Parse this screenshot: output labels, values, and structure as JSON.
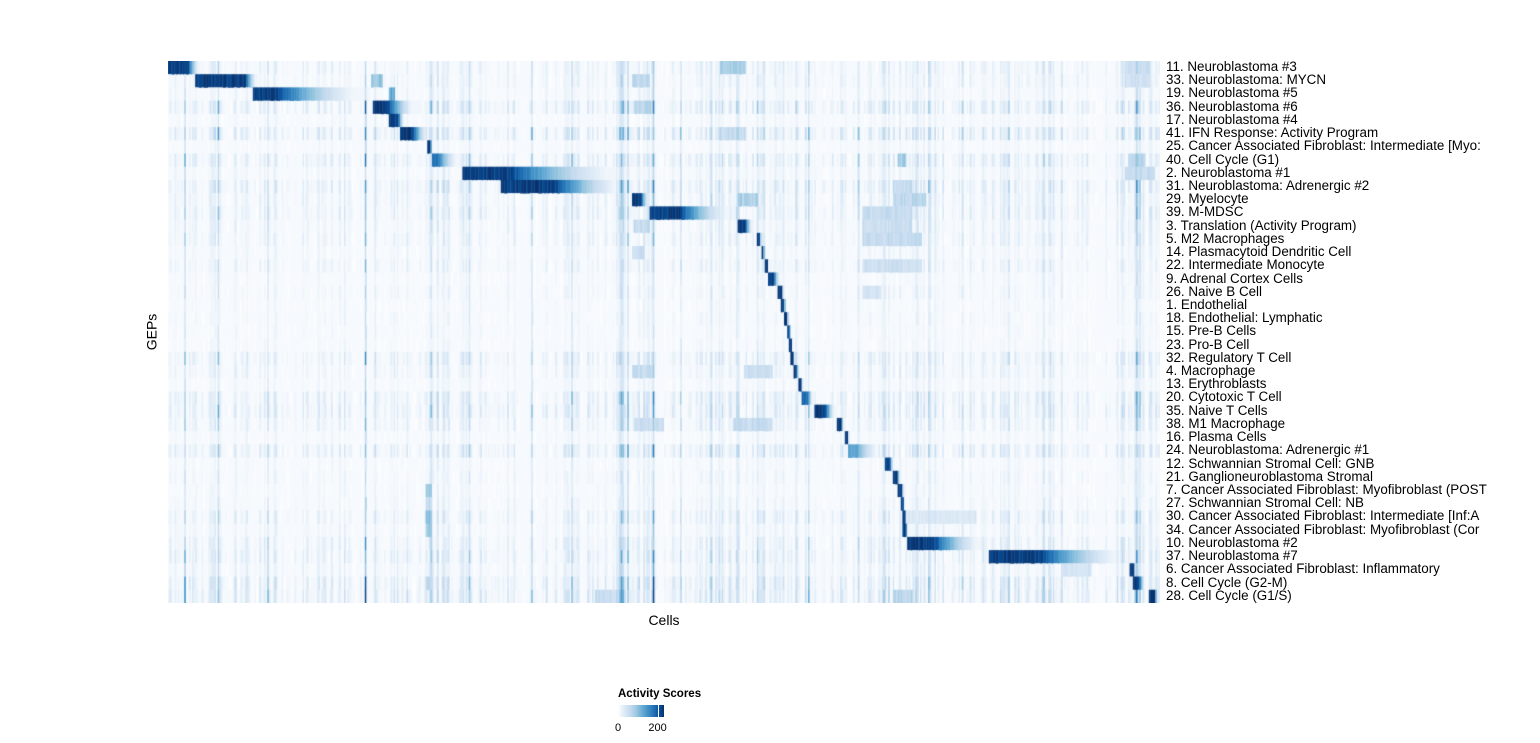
{
  "chart_data": {
    "type": "heatmap",
    "xlabel": "Cells",
    "ylabel": "GEPs",
    "legend": {
      "title": "Activity Scores",
      "min_label": "0",
      "tick_label": "200",
      "tick_pos": 0.86,
      "position": "bottom-left"
    },
    "colors": {
      "background": "#ffffff",
      "panel": "#f6fafe",
      "max": "#08306b",
      "scale": [
        {
          "t": 0.0,
          "c": "#ffffff"
        },
        {
          "t": 0.13,
          "c": "#deebf7"
        },
        {
          "t": 0.26,
          "c": "#c6dbef"
        },
        {
          "t": 0.39,
          "c": "#9ecae1"
        },
        {
          "t": 0.52,
          "c": "#6baed6"
        },
        {
          "t": 0.65,
          "c": "#4292c6"
        },
        {
          "t": 0.78,
          "c": "#2171b5"
        },
        {
          "t": 0.9,
          "c": "#08519c"
        },
        {
          "t": 1.0,
          "c": "#08306b"
        }
      ]
    },
    "n_rows": 41,
    "noise_columns": {
      "seed": 42,
      "hot_bands": [
        [
          0.19,
          0.215,
          1.5
        ],
        [
          0.26,
          0.285,
          1.35
        ],
        [
          0.44,
          0.5,
          1.4
        ],
        [
          0.555,
          0.585,
          1.6
        ],
        [
          0.62,
          0.665,
          1.25
        ],
        [
          0.7,
          0.78,
          1.6
        ],
        [
          0.88,
          0.92,
          1.45
        ],
        [
          0.955,
          1.0,
          1.6
        ]
      ]
    },
    "rows": [
      {
        "label": "11. Neuroblastoma #3",
        "block": [
          0.0,
          0.033
        ],
        "head": 0.62,
        "peak": 1.0,
        "noise": 0.9,
        "extras": [
          [
            0.556,
            0.582,
            0.45
          ],
          [
            0.965,
            0.99,
            0.28
          ]
        ]
      },
      {
        "label": "33. Neuroblastoma: MYCN",
        "block": [
          0.027,
          0.091
        ],
        "head": 0.8,
        "peak": 1.0,
        "noise": 0.8,
        "extras": [
          [
            0.205,
            0.216,
            0.5
          ],
          [
            0.468,
            0.486,
            0.35
          ],
          [
            0.965,
            0.99,
            0.25
          ]
        ]
      },
      {
        "label": "19. Neuroblastoma #5",
        "block": [
          0.086,
          0.204
        ],
        "head": 0.2,
        "peak": 1.0,
        "noise": 0.6,
        "extras": [
          [
            0.223,
            0.229,
            0.65
          ]
        ]
      },
      {
        "label": "36. Neuroblastoma #6",
        "block": [
          0.206,
          0.251
        ],
        "head": 0.36,
        "peak": 1.0,
        "noise": 1.4,
        "extras": [
          [
            0.47,
            0.49,
            0.35
          ]
        ]
      },
      {
        "label": "17. Neuroblastoma #4",
        "block": [
          0.223,
          0.239
        ],
        "head": 0.55,
        "peak": 1.0,
        "noise": 0.5,
        "extras": []
      },
      {
        "label": "41. IFN Response: Activity Program",
        "block": [
          0.234,
          0.264
        ],
        "head": 0.42,
        "peak": 1.0,
        "noise": 1.5,
        "extras": [
          [
            0.556,
            0.582,
            0.3
          ]
        ]
      },
      {
        "label": "25. Cancer Associated Fibroblast: Intermediate [Myo:",
        "block": [
          0.261,
          0.267
        ],
        "head": 0.6,
        "peak": 1.0,
        "noise": 0.45,
        "extras": []
      },
      {
        "label": "40. Cell Cycle (G1)",
        "block": [
          0.266,
          0.295
        ],
        "head": 0.22,
        "peak": 0.8,
        "noise": 1.3,
        "extras": [
          [
            0.735,
            0.743,
            0.45
          ],
          [
            0.968,
            0.985,
            0.35
          ]
        ]
      },
      {
        "label": "2. Neuroblastoma #1",
        "block": [
          0.297,
          0.466
        ],
        "head": 0.28,
        "peak": 1.0,
        "noise": 0.7,
        "extras": [
          [
            0.965,
            0.995,
            0.3
          ]
        ]
      },
      {
        "label": "31. Neuroblastoma: Adrenergic #2",
        "block": [
          0.335,
          0.466
        ],
        "head": 0.42,
        "peak": 1.0,
        "noise": 1.3,
        "extras": [
          [
            0.73,
            0.75,
            0.3
          ]
        ]
      },
      {
        "label": "29. Myelocyte",
        "block": [
          0.467,
          0.486
        ],
        "head": 0.5,
        "peak": 1.0,
        "noise": 1.0,
        "extras": [
          [
            0.574,
            0.595,
            0.4
          ],
          [
            0.73,
            0.765,
            0.35
          ]
        ]
      },
      {
        "label": "39. M-MDSC",
        "block": [
          0.486,
          0.572
        ],
        "head": 0.35,
        "peak": 1.0,
        "noise": 1.1,
        "extras": [
          [
            0.7,
            0.75,
            0.3
          ]
        ]
      },
      {
        "label": "3. Translation (Activity Program)",
        "block": [
          0.574,
          0.59
        ],
        "head": 0.5,
        "peak": 1.0,
        "noise": 0.8,
        "extras": [
          [
            0.469,
            0.486,
            0.3
          ],
          [
            0.7,
            0.75,
            0.28
          ]
        ]
      },
      {
        "label": "5. M2 Macrophages",
        "block": [
          0.593,
          0.599
        ],
        "head": 0.55,
        "peak": 1.0,
        "noise": 0.9,
        "extras": [
          [
            0.7,
            0.76,
            0.3
          ]
        ]
      },
      {
        "label": "14. Plasmacytoid Dendritic Cell",
        "block": [
          0.598,
          0.602
        ],
        "head": 0.55,
        "peak": 1.0,
        "noise": 0.6,
        "extras": [
          [
            0.468,
            0.48,
            0.28
          ]
        ]
      },
      {
        "label": "22. Intermediate Monocyte",
        "block": [
          0.602,
          0.606
        ],
        "head": 0.6,
        "peak": 1.0,
        "noise": 0.8,
        "extras": [
          [
            0.7,
            0.76,
            0.26
          ]
        ]
      },
      {
        "label": "9. Adrenal Cortex Cells",
        "block": [
          0.605,
          0.618
        ],
        "head": 0.4,
        "peak": 1.0,
        "noise": 0.5,
        "extras": []
      },
      {
        "label": "26. Naive B Cell",
        "block": [
          0.615,
          0.621
        ],
        "head": 0.6,
        "peak": 1.0,
        "noise": 0.6,
        "extras": [
          [
            0.7,
            0.72,
            0.22
          ]
        ]
      },
      {
        "label": "1. Endothelial",
        "block": [
          0.618,
          0.623
        ],
        "head": 0.6,
        "peak": 1.0,
        "noise": 0.45,
        "extras": []
      },
      {
        "label": "18. Endothelial: Lymphatic",
        "block": [
          0.621,
          0.626
        ],
        "head": 0.6,
        "peak": 1.0,
        "noise": 0.5,
        "extras": []
      },
      {
        "label": "15. Pre-B Cells",
        "block": [
          0.624,
          0.628
        ],
        "head": 0.6,
        "peak": 1.0,
        "noise": 0.45,
        "extras": []
      },
      {
        "label": "23. Pro-B Cell",
        "block": [
          0.626,
          0.63
        ],
        "head": 0.6,
        "peak": 1.0,
        "noise": 0.45,
        "extras": []
      },
      {
        "label": "32. Regulatory T Cell",
        "block": [
          0.628,
          0.632
        ],
        "head": 0.6,
        "peak": 1.0,
        "noise": 1.1,
        "extras": []
      },
      {
        "label": "4. Macrophage",
        "block": [
          0.63,
          0.637
        ],
        "head": 0.5,
        "peak": 1.0,
        "noise": 0.8,
        "extras": [
          [
            0.468,
            0.49,
            0.3
          ],
          [
            0.58,
            0.61,
            0.28
          ]
        ]
      },
      {
        "label": "13. Erythroblasts",
        "block": [
          0.636,
          0.64
        ],
        "head": 0.6,
        "peak": 1.0,
        "noise": 0.5,
        "extras": []
      },
      {
        "label": "20. Cytotoxic T Cell",
        "block": [
          0.639,
          0.651
        ],
        "head": 0.5,
        "peak": 0.85,
        "noise": 1.2,
        "extras": []
      },
      {
        "label": "35. Naive T Cells",
        "block": [
          0.651,
          0.674
        ],
        "head": 0.5,
        "peak": 1.0,
        "noise": 1.3,
        "extras": []
      },
      {
        "label": "38. M1 Macrophage",
        "block": [
          0.674,
          0.682
        ],
        "head": 0.55,
        "peak": 1.0,
        "noise": 0.9,
        "extras": [
          [
            0.47,
            0.5,
            0.28
          ],
          [
            0.57,
            0.61,
            0.3
          ]
        ]
      },
      {
        "label": "16. Plasma Cells",
        "block": [
          0.682,
          0.687
        ],
        "head": 0.6,
        "peak": 1.0,
        "noise": 0.5,
        "extras": []
      },
      {
        "label": "24. Neuroblastoma: Adrenergic #1",
        "block": [
          0.685,
          0.721
        ],
        "head": 0.25,
        "peak": 0.6,
        "noise": 1.3,
        "extras": []
      },
      {
        "label": "12. Schwannian Stromal Cell: GNB",
        "block": [
          0.723,
          0.732
        ],
        "head": 0.5,
        "peak": 1.0,
        "noise": 0.5,
        "extras": []
      },
      {
        "label": "21. Ganglioneuroblastoma Stromal",
        "block": [
          0.73,
          0.739
        ],
        "head": 0.55,
        "peak": 1.0,
        "noise": 0.6,
        "extras": []
      },
      {
        "label": "7. Cancer Associated Fibroblast: Myofibroblast (POST",
        "block": [
          0.736,
          0.742
        ],
        "head": 0.6,
        "peak": 1.0,
        "noise": 0.5,
        "extras": [
          [
            0.26,
            0.266,
            0.5
          ]
        ]
      },
      {
        "label": "27. Schwannian Stromal Cell: NB",
        "block": [
          0.738,
          0.743
        ],
        "head": 0.6,
        "peak": 1.0,
        "noise": 0.6,
        "extras": [
          [
            0.26,
            0.266,
            0.33
          ]
        ]
      },
      {
        "label": "30. Cancer Associated Fibroblast: Intermediate [Inf:A",
        "block": [
          0.74,
          0.745
        ],
        "head": 0.6,
        "peak": 1.0,
        "noise": 1.0,
        "extras": [
          [
            0.26,
            0.266,
            0.5
          ],
          [
            0.745,
            0.815,
            0.18
          ]
        ]
      },
      {
        "label": "34. Cancer Associated Fibroblast: Myofibroblast (Cor",
        "block": [
          0.741,
          0.746
        ],
        "head": 0.6,
        "peak": 1.0,
        "noise": 0.7,
        "extras": [
          [
            0.26,
            0.266,
            0.42
          ]
        ]
      },
      {
        "label": "10. Neuroblastoma #2",
        "block": [
          0.745,
          0.826
        ],
        "head": 0.33,
        "peak": 1.0,
        "noise": 1.1,
        "extras": []
      },
      {
        "label": "37. Neuroblastoma #7",
        "block": [
          0.827,
          0.973
        ],
        "head": 0.36,
        "peak": 1.0,
        "noise": 1.2,
        "extras": []
      },
      {
        "label": "6. Cancer Associated Fibroblast: Inflammatory",
        "block": [
          0.97,
          0.976
        ],
        "head": 0.6,
        "peak": 1.0,
        "noise": 0.9,
        "extras": [
          [
            0.9,
            0.93,
            0.22
          ]
        ]
      },
      {
        "label": "8. Cell Cycle (G2-M)",
        "block": [
          0.972,
          0.986
        ],
        "head": 0.5,
        "peak": 1.0,
        "noise": 1.5,
        "extras": [
          [
            0.26,
            0.268,
            0.3
          ]
        ]
      },
      {
        "label": "28. Cell Cycle (G1/S)",
        "block": [
          0.989,
          0.999
        ],
        "head": 0.55,
        "peak": 1.0,
        "noise": 1.6,
        "extras": [
          [
            0.43,
            0.46,
            0.3
          ],
          [
            0.73,
            0.75,
            0.35
          ]
        ]
      }
    ]
  }
}
